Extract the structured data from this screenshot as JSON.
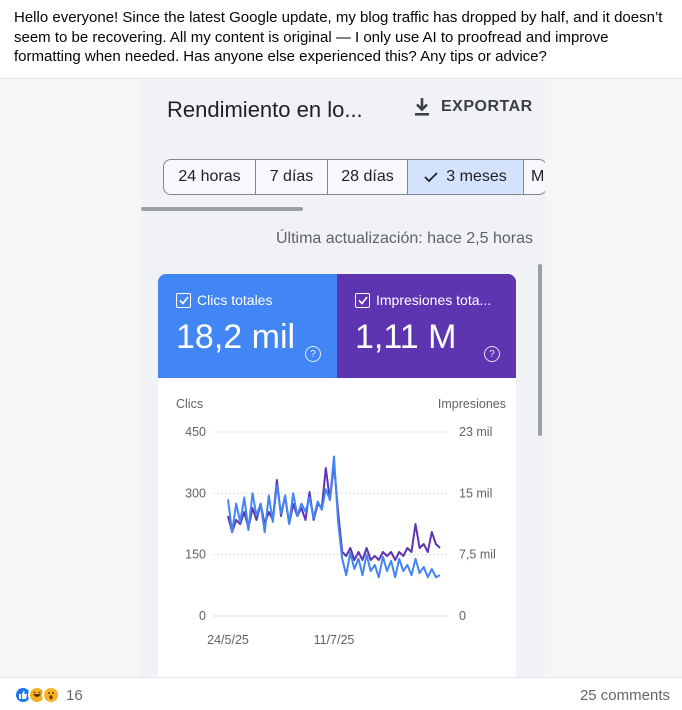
{
  "post": {
    "text": "Hello everyone! Since the latest Google update, my blog traffic has dropped by half, and it doesn’t seem to be recovering. All my content is original — I only use AI to proofread and improve formatting when needed. Has anyone else experienced this? Any tips or advice?"
  },
  "screenshot": {
    "header_title": "Rendimiento en lo...",
    "export_label": "EXPORTAR",
    "range_chips": [
      {
        "label": "24 horas",
        "selected": false
      },
      {
        "label": "7 días",
        "selected": false
      },
      {
        "label": "28 días",
        "selected": false
      },
      {
        "label": "3 meses",
        "selected": true
      },
      {
        "label": "M",
        "selected": false
      }
    ],
    "last_updated": "Última actualización: hace 2,5 horas",
    "metrics": {
      "clicks": {
        "label": "Clics totales",
        "value": "18,2 mil",
        "color": "#4285f4"
      },
      "impressions": {
        "label": "Impresiones tota...",
        "value": "1,11 M",
        "color": "#5e35b1"
      }
    }
  },
  "chart_data": {
    "type": "line",
    "left_axis_label": "Clics",
    "right_axis_label": "Impresiones",
    "left_ticks": [
      "450",
      "300",
      "150",
      "0"
    ],
    "right_ticks": [
      "23 mil",
      "15 mil",
      "7,5 mil",
      "0"
    ],
    "left_ylim": [
      0,
      450
    ],
    "x_ticks": [
      "24/5/25",
      "11/7/25"
    ],
    "x_count": 53,
    "series": [
      {
        "name": "Clics",
        "color": "#4285f4",
        "values": [
          285,
          205,
          275,
          230,
          290,
          210,
          300,
          245,
          275,
          205,
          295,
          230,
          320,
          250,
          295,
          225,
          300,
          245,
          275,
          255,
          290,
          240,
          280,
          260,
          310,
          285,
          390,
          230,
          140,
          100,
          155,
          115,
          140,
          100,
          150,
          110,
          125,
          95,
          145,
          110,
          135,
          95,
          140,
          110,
          125,
          100,
          140,
          105,
          120,
          95,
          115,
          95,
          100
        ]
      },
      {
        "name": "Impresiones",
        "color": "#5e35b1",
        "values": [
          12.5,
          10.5,
          12.0,
          11.5,
          13.0,
          11.0,
          13.5,
          12.0,
          14.0,
          11.5,
          13.0,
          12.0,
          17.0,
          12.5,
          15.0,
          11.5,
          14.0,
          12.5,
          13.5,
          12.0,
          15.5,
          12.0,
          14.0,
          13.5,
          18.5,
          14.5,
          19.0,
          13.0,
          8.0,
          7.5,
          8.5,
          7.0,
          8.0,
          7.0,
          8.5,
          7.0,
          7.5,
          7.0,
          8.0,
          7.5,
          8.0,
          7.0,
          8.0,
          7.5,
          8.5,
          8.0,
          11.5,
          8.5,
          9.0,
          8.0,
          10.5,
          9.0,
          8.5
        ]
      }
    ]
  },
  "footer": {
    "reaction_count": "16",
    "comments": "25 comments"
  }
}
